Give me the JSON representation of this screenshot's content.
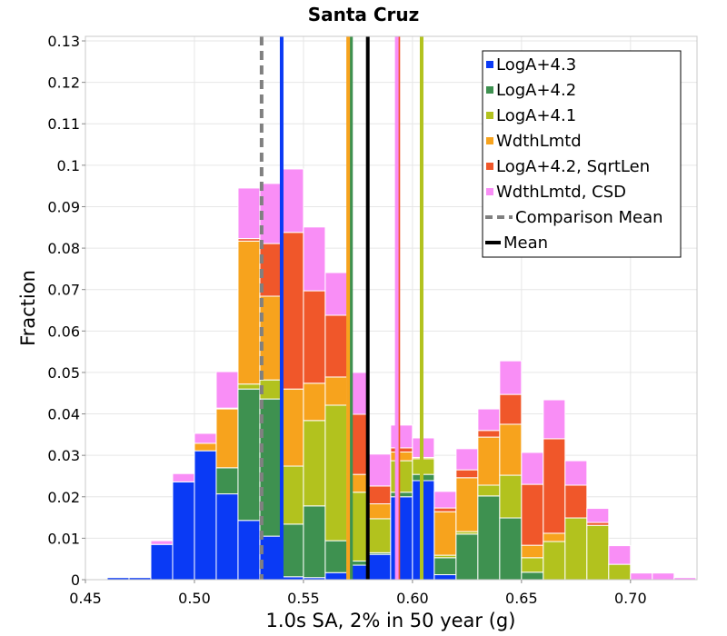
{
  "chart_data": {
    "type": "bar",
    "stacked": true,
    "title": "Santa Cruz",
    "xlabel": "1.0s SA, 2% in 50 year (g)",
    "ylabel": "Fraction",
    "xlim": [
      0.45,
      0.7305
    ],
    "ylim": [
      0,
      0.1311
    ],
    "grid": true,
    "legend_position": "top-right",
    "x_ticks": [
      "0.45",
      "0.50",
      "0.55",
      "0.60",
      "0.65",
      "0.70"
    ],
    "y_ticks": [
      "0",
      "0.01",
      "0.02",
      "0.03",
      "0.04",
      "0.05",
      "0.06",
      "0.07",
      "0.08",
      "0.09",
      "0.1",
      "0.11",
      "0.12",
      "0.13"
    ],
    "bin_width": 0.01,
    "bins": [
      0.46,
      0.47,
      0.48,
      0.49,
      0.5,
      0.51,
      0.52,
      0.53,
      0.54,
      0.55,
      0.56,
      0.57,
      0.58,
      0.59,
      0.6,
      0.61,
      0.62,
      0.63,
      0.64,
      0.65,
      0.66,
      0.67,
      0.68,
      0.69,
      0.7,
      0.71,
      0.72
    ],
    "series": [
      {
        "name": "LogA+4.3",
        "color": "#0a3af5",
        "mean": 0.54,
        "values": [
          0.0005,
          0.0005,
          0.0085,
          0.0236,
          0.0311,
          0.0207,
          0.0143,
          0.0105,
          0.0007,
          0.0005,
          0.0017,
          0.0035,
          0.0061,
          0.02,
          0.0239,
          0.0012,
          0,
          0,
          0,
          0,
          0,
          0,
          0,
          0,
          0,
          0,
          0
        ]
      },
      {
        "name": "LogA+4.2",
        "color": "#3e9150",
        "mean": 0.5718,
        "values": [
          0,
          0,
          0,
          0,
          0,
          0.0063,
          0.0317,
          0.0331,
          0.0127,
          0.0173,
          0.0077,
          0.001,
          0.0004,
          0.0011,
          0.0015,
          0.0041,
          0.011,
          0.0202,
          0.0149,
          0.0018,
          0,
          0,
          0,
          0,
          0,
          0,
          0
        ]
      },
      {
        "name": "LogA+4.1",
        "color": "#b2c21e",
        "mean": 0.6042,
        "values": [
          0,
          0,
          0,
          0,
          0,
          0,
          0.0012,
          0.0046,
          0.014,
          0.0206,
          0.0327,
          0.0166,
          0.0082,
          0.0076,
          0.0038,
          0.0006,
          0.0006,
          0.0026,
          0.0103,
          0.0035,
          0.0092,
          0.0149,
          0.0131,
          0.0037,
          0,
          0,
          0
        ]
      },
      {
        "name": "WdthLmtd",
        "color": "#f7a31d",
        "mean": 0.5705,
        "values": [
          0,
          0,
          0,
          0,
          0.0018,
          0.0142,
          0.0345,
          0.0202,
          0.0186,
          0.009,
          0.0068,
          0.0043,
          0.0036,
          0.0021,
          0.0003,
          0.0105,
          0.013,
          0.0116,
          0.0123,
          0.003,
          0.002,
          0,
          0,
          0,
          0,
          0,
          0
        ]
      },
      {
        "name": "LogA+4.2, SqrtLen",
        "color": "#f0572a",
        "mean": 0.5935,
        "values": [
          0,
          0,
          0,
          0,
          0,
          0.0002,
          0.0006,
          0.0127,
          0.0378,
          0.0223,
          0.0149,
          0.0145,
          0.0043,
          0.001,
          0,
          0.0009,
          0.0019,
          0.0016,
          0.0072,
          0.0147,
          0.0228,
          0.0079,
          0.0007,
          0,
          0,
          0,
          0
        ]
      },
      {
        "name": "WdthLmtd, CSD",
        "color": "#f98ef6",
        "mean": 0.5928,
        "values": [
          0,
          0,
          0.0009,
          0.002,
          0.0024,
          0.0088,
          0.0122,
          0.0145,
          0.0153,
          0.0154,
          0.0103,
          0.0101,
          0.0077,
          0.0055,
          0.0047,
          0.004,
          0.0051,
          0.0052,
          0.0081,
          0.0077,
          0.0094,
          0.0059,
          0.0034,
          0.0045,
          0.0016,
          0.0016,
          0.0005
        ]
      }
    ],
    "reference_lines": [
      {
        "name": "Comparison Mean",
        "value": 0.5308,
        "color": "#808080",
        "dashed": true
      },
      {
        "name": "Mean",
        "value": 0.5795,
        "color": "#000000",
        "dashed": false
      }
    ]
  }
}
